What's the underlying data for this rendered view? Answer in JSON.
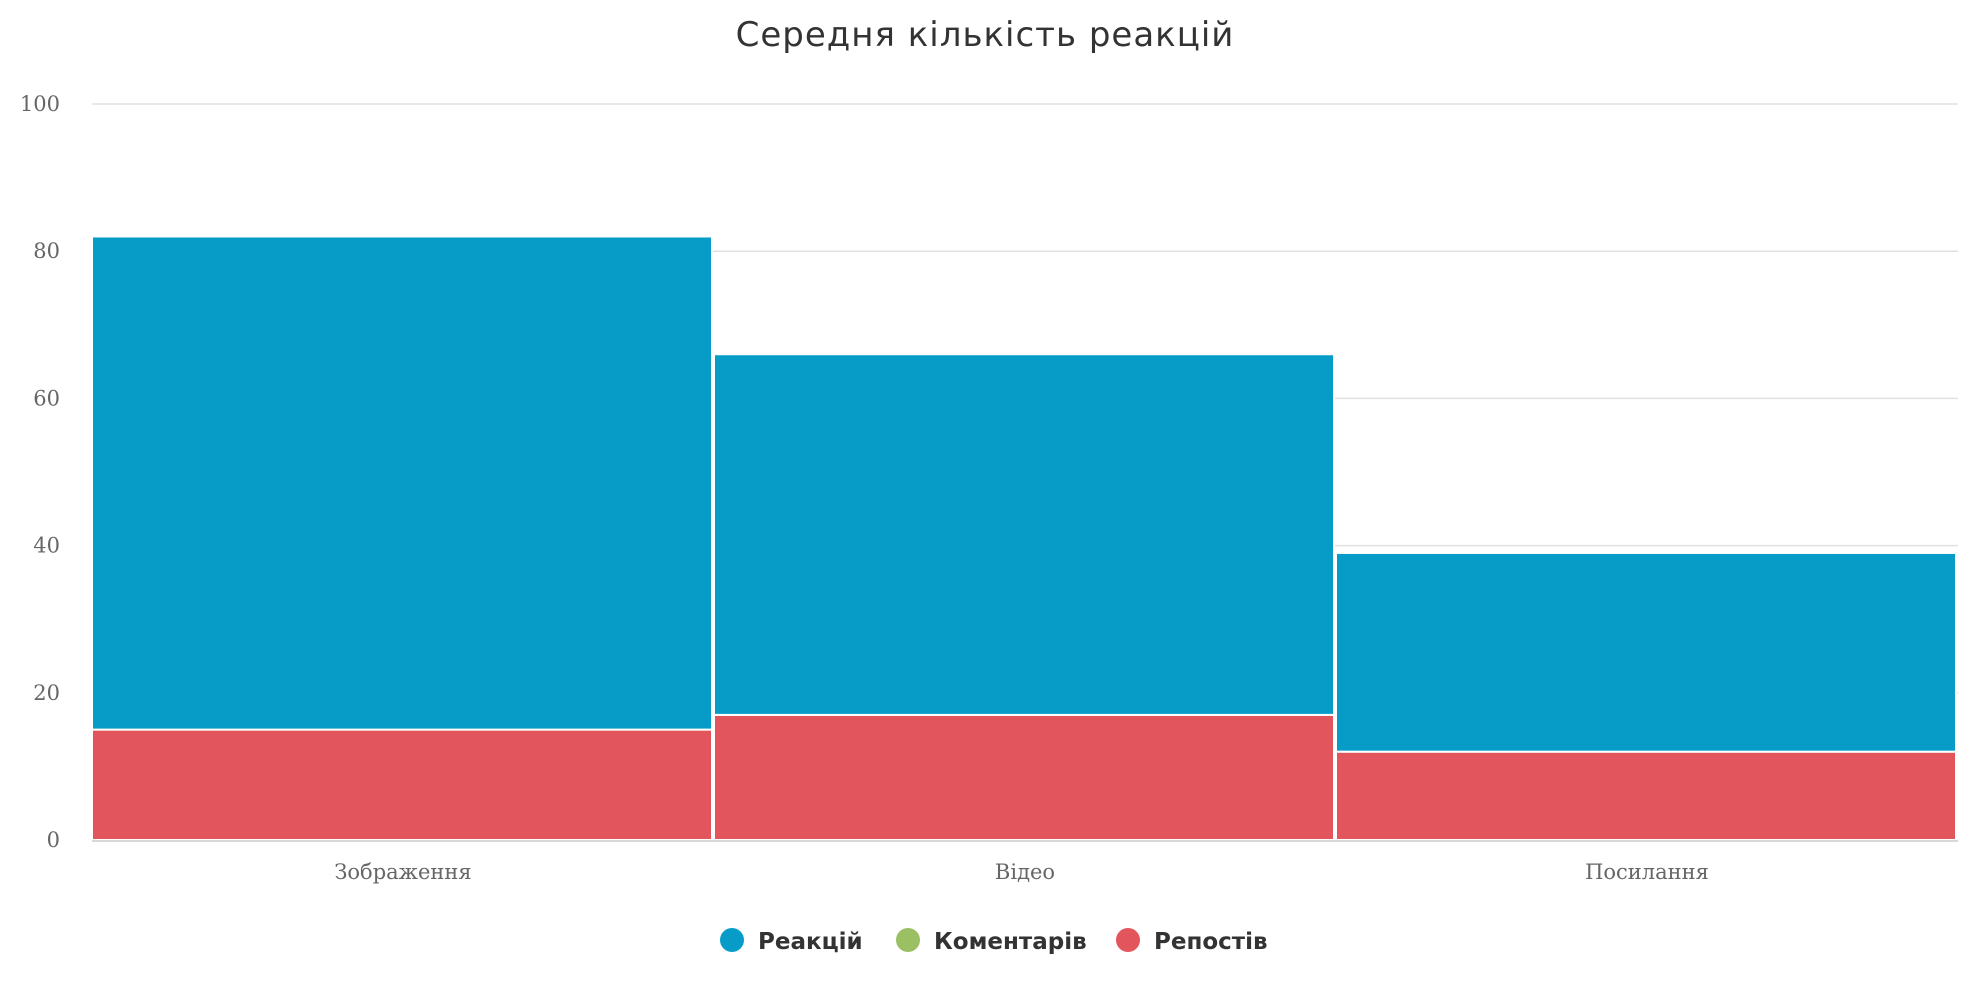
{
  "chart_data": {
    "type": "bar",
    "stacked": true,
    "title": "Середня кількість реакцій",
    "xlabel": "",
    "ylabel": "",
    "ylim": [
      0,
      100
    ],
    "yticks": [
      "0",
      "20",
      "40",
      "60",
      "80",
      "100"
    ],
    "categories": [
      "Зображення",
      "Відео",
      "Посилання"
    ],
    "series": [
      {
        "name": "Репостів",
        "values": [
          15,
          17,
          12
        ],
        "color": "#e2555c"
      },
      {
        "name": "Коментарів",
        "values": [
          0,
          0,
          0
        ],
        "color": "#9bbf63"
      },
      {
        "name": "Реакцій",
        "values": [
          67,
          49,
          27
        ],
        "color": "#079cc7"
      }
    ],
    "legend": {
      "position": "bottom-center",
      "order": [
        "Реакцій",
        "Коментарів",
        "Репостів"
      ]
    },
    "grid": true
  }
}
